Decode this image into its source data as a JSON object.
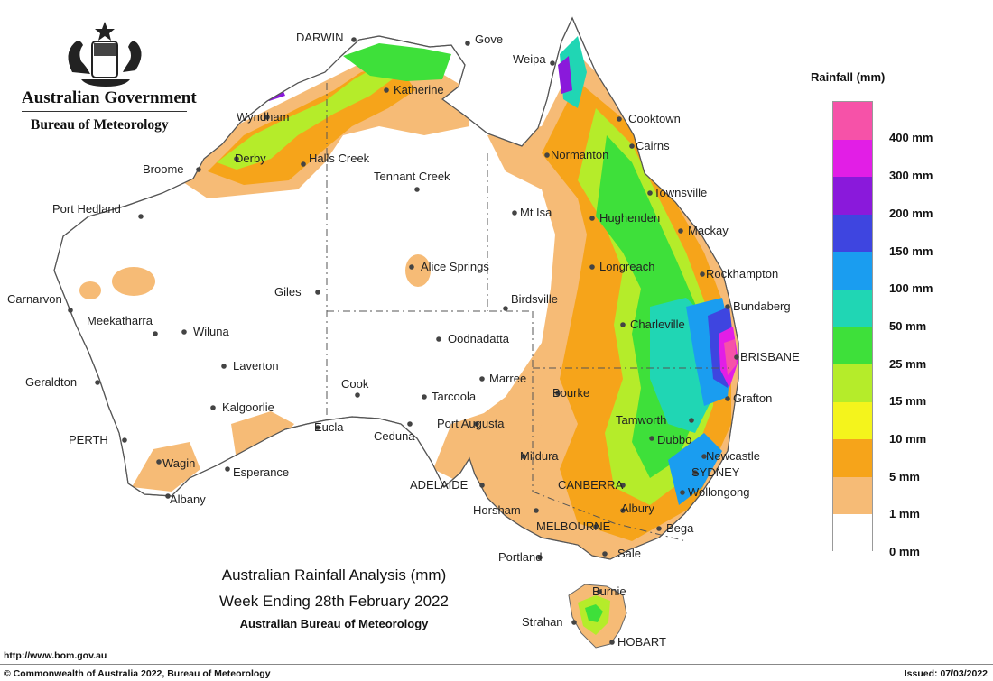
{
  "header": {
    "government": "Australian Government",
    "bureau": "Bureau of Meteorology"
  },
  "map": {
    "title_line1": "Australian Rainfall Analysis (mm)",
    "title_line2": "Week Ending 28th February 2022",
    "title_line3": "Australian Bureau of Meteorology",
    "places": [
      "DARWIN",
      "Gove",
      "Weipa",
      "Katherine",
      "Wyndham",
      "Cooktown",
      "Cairns",
      "Derby",
      "Halls Creek",
      "Broome",
      "Normanton",
      "Tennant Creek",
      "Townsville",
      "Port Hedland",
      "Mt Isa",
      "Hughenden",
      "Mackay",
      "Alice Springs",
      "Longreach",
      "Rockhampton",
      "Carnarvon",
      "Giles",
      "Birdsville",
      "Bundaberg",
      "Meekatharra",
      "Wiluna",
      "Oodnadatta",
      "Charleville",
      "Laverton",
      "BRISBANE",
      "Geraldton",
      "Marree",
      "Cook",
      "Tarcoola",
      "Bourke",
      "Grafton",
      "Kalgoorlie",
      "Port Augusta",
      "Tamworth",
      "PERTH",
      "Eucla",
      "Ceduna",
      "Dubbo",
      "Newcastle",
      "Wagin",
      "Esperance",
      "Mildura",
      "SYDNEY",
      "ADELAIDE",
      "CANBERRA",
      "Wollongong",
      "Albany",
      "Horsham",
      "Albury",
      "MELBOURNE",
      "Bega",
      "Portland",
      "Sale",
      "Burnie",
      "Strahan",
      "HOBART"
    ]
  },
  "legend": {
    "title": "Rainfall (mm)",
    "labels": [
      "400 mm",
      "300 mm",
      "200 mm",
      "150 mm",
      "100 mm",
      "50 mm",
      "25 mm",
      "15 mm",
      "10 mm",
      "5 mm",
      "1 mm",
      "0 mm"
    ],
    "colors": [
      "#f652a8",
      "#e21ee6",
      "#8a19db",
      "#3e45e0",
      "#1a9df0",
      "#20d6b4",
      "#3ee03a",
      "#b5ec2a",
      "#f4f41c",
      "#f6a41a",
      "#f6bb76",
      "#ffffff"
    ]
  },
  "footer": {
    "url": "http://www.bom.gov.au",
    "copyright": "© Commonwealth of Australia 2022, Bureau of Meteorology",
    "issued": "Issued: 07/03/2022"
  }
}
